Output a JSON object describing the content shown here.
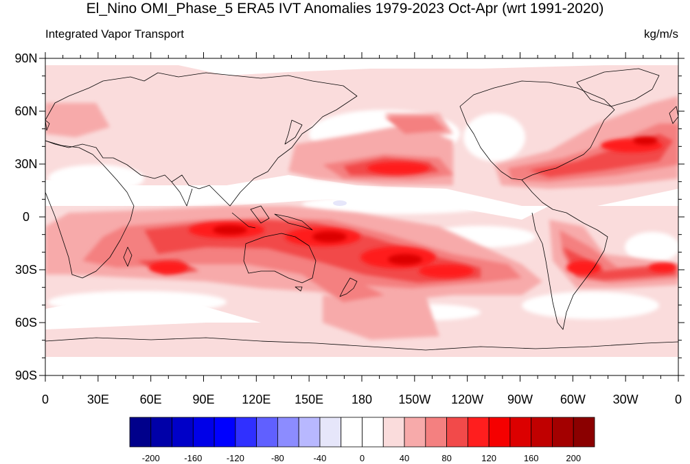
{
  "header": {
    "title": "El_Nino OMI_Phase_5 ERA5 IVT Anomalies 1979-2023 Oct-Apr (wrt 1991-2020)",
    "left_string": "Integrated Vapor Transport",
    "right_string": "kg/m/s"
  },
  "map": {
    "projection": "cylindrical-equidistant",
    "lon_range": [
      0,
      360
    ],
    "lat_range": [
      -90,
      90
    ],
    "lat_labels": [
      "90N",
      "60N",
      "30N",
      "0",
      "30S",
      "60S",
      "90S"
    ],
    "lon_labels": [
      "0",
      "30E",
      "60E",
      "90E",
      "120E",
      "150E",
      "180",
      "150W",
      "120W",
      "90W",
      "60W",
      "30W",
      "0"
    ],
    "land_outline_color": "#000000",
    "ocean_background": "#ffffff"
  },
  "colorbar": {
    "labels": [
      "-200",
      "-160",
      "-120",
      "-80",
      "-40",
      "0",
      "40",
      "80",
      "120",
      "160",
      "200"
    ],
    "colors": [
      "#00008b",
      "#0000a8",
      "#0000c8",
      "#0000e8",
      "#0000ff",
      "#3030ff",
      "#6060ff",
      "#8c8cff",
      "#b8b8ff",
      "#e6e6fa",
      "#ffffff",
      "#ffffff",
      "#fadcdc",
      "#f7aaaa",
      "#f48080",
      "#f24a4a",
      "#ff1e1e",
      "#f50000",
      "#dc0000",
      "#c00000",
      "#a30000",
      "#8b0000"
    ]
  }
}
